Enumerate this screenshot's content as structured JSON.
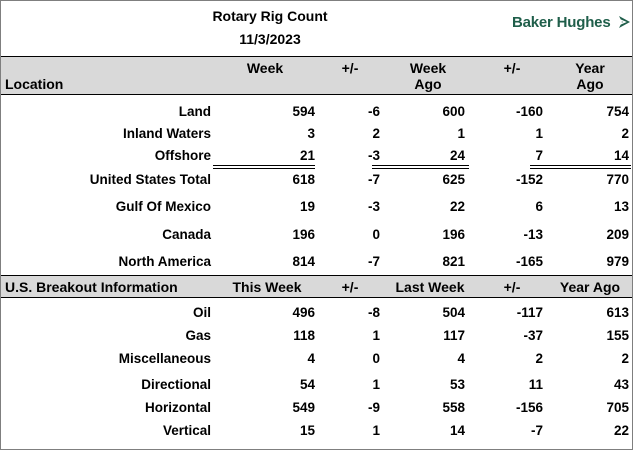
{
  "header": {
    "title": "Rotary Rig Count",
    "date": "11/3/2023",
    "logo_text": "Baker Hughes",
    "logo_color": "#1f5e4a"
  },
  "section1": {
    "location_label": "Location",
    "col_week": "Week",
    "col_change": "+/-",
    "col_week_ago_1": "Week",
    "col_week_ago_2": "Ago",
    "col_change2": "+/-",
    "col_year_ago_1": "Year",
    "col_year_ago_2": "Ago",
    "rows": [
      {
        "name": "Land",
        "week": "594",
        "chg": "-6",
        "ago": "600",
        "chg2": "-160",
        "year": "754"
      },
      {
        "name": "Inland Waters",
        "week": "3",
        "chg": "2",
        "ago": "1",
        "chg2": "1",
        "year": "2"
      },
      {
        "name": "Offshore",
        "week": "21",
        "chg": "-3",
        "ago": "24",
        "chg2": "7",
        "year": "14"
      },
      {
        "name": "United States Total",
        "week": "618",
        "chg": "-7",
        "ago": "625",
        "chg2": "-152",
        "year": "770"
      },
      {
        "name": "Gulf Of Mexico",
        "week": "19",
        "chg": "-3",
        "ago": "22",
        "chg2": "6",
        "year": "13"
      },
      {
        "name": "Canada",
        "week": "196",
        "chg": "0",
        "ago": "196",
        "chg2": "-13",
        "year": "209"
      },
      {
        "name": "North America",
        "week": "814",
        "chg": "-7",
        "ago": "821",
        "chg2": "-165",
        "year": "979"
      }
    ]
  },
  "section2": {
    "label": "U.S. Breakout Information",
    "col_this_week": "This Week",
    "col_change": "+/-",
    "col_last_week": "Last Week",
    "col_change2": "+/-",
    "col_year_ago": "Year Ago",
    "rows": [
      {
        "name": "Oil",
        "week": "496",
        "chg": "-8",
        "ago": "504",
        "chg2": "-117",
        "year": "613"
      },
      {
        "name": "Gas",
        "week": "118",
        "chg": "1",
        "ago": "117",
        "chg2": "-37",
        "year": "155"
      },
      {
        "name": "Miscellaneous",
        "week": "4",
        "chg": "0",
        "ago": "4",
        "chg2": "2",
        "year": "2"
      },
      {
        "name": "Directional",
        "week": "54",
        "chg": "1",
        "ago": "53",
        "chg2": "11",
        "year": "43"
      },
      {
        "name": "Horizontal",
        "week": "549",
        "chg": "-9",
        "ago": "558",
        "chg2": "-156",
        "year": "705"
      },
      {
        "name": "Vertical",
        "week": "15",
        "chg": "1",
        "ago": "14",
        "chg2": "-7",
        "year": "22"
      }
    ]
  }
}
